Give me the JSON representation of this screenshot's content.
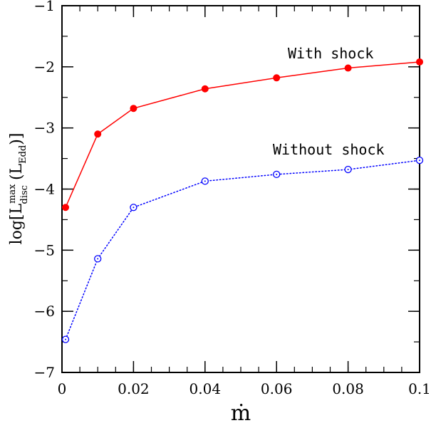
{
  "chart_data": {
    "type": "line",
    "xlabel": "ṁ",
    "ylabel": {
      "prefix": "log[",
      "main": "L",
      "sup": "max",
      "sub": "disc",
      "open": " (L",
      "unit_sub": "Edd",
      "close": ")]"
    },
    "xlim": [
      0,
      0.1
    ],
    "ylim": [
      -7,
      -1
    ],
    "x_ticks": [
      0,
      0.02,
      0.04,
      0.06,
      0.08,
      0.1
    ],
    "x_tick_labels": [
      "0",
      "0.02",
      "0.04",
      "0.06",
      "0.08",
      "0.1"
    ],
    "y_ticks": [
      -7,
      -6,
      -5,
      -4,
      -3,
      -2,
      -1
    ],
    "y_tick_labels": [
      "−7",
      "−6",
      "−5",
      "−4",
      "−3",
      "−2",
      "−1"
    ],
    "grid": false,
    "series": [
      {
        "name": "With shock",
        "color": "#ff0000",
        "line": "solid",
        "marker": "filled-circle",
        "x": [
          0.001,
          0.01,
          0.02,
          0.04,
          0.06,
          0.08,
          0.1
        ],
        "y": [
          -4.3,
          -3.1,
          -2.68,
          -2.36,
          -2.18,
          -2.02,
          -1.92
        ]
      },
      {
        "name": "Without shock",
        "color": "#0000ff",
        "line": "dotted",
        "marker": "open-circle-dot",
        "x": [
          0.001,
          0.01,
          0.02,
          0.04,
          0.06,
          0.08,
          0.1
        ],
        "y": [
          -6.46,
          -5.14,
          -4.3,
          -3.87,
          -3.76,
          -3.68,
          -3.53
        ]
      }
    ],
    "annotations": [
      "With shock",
      "Without shock"
    ]
  }
}
